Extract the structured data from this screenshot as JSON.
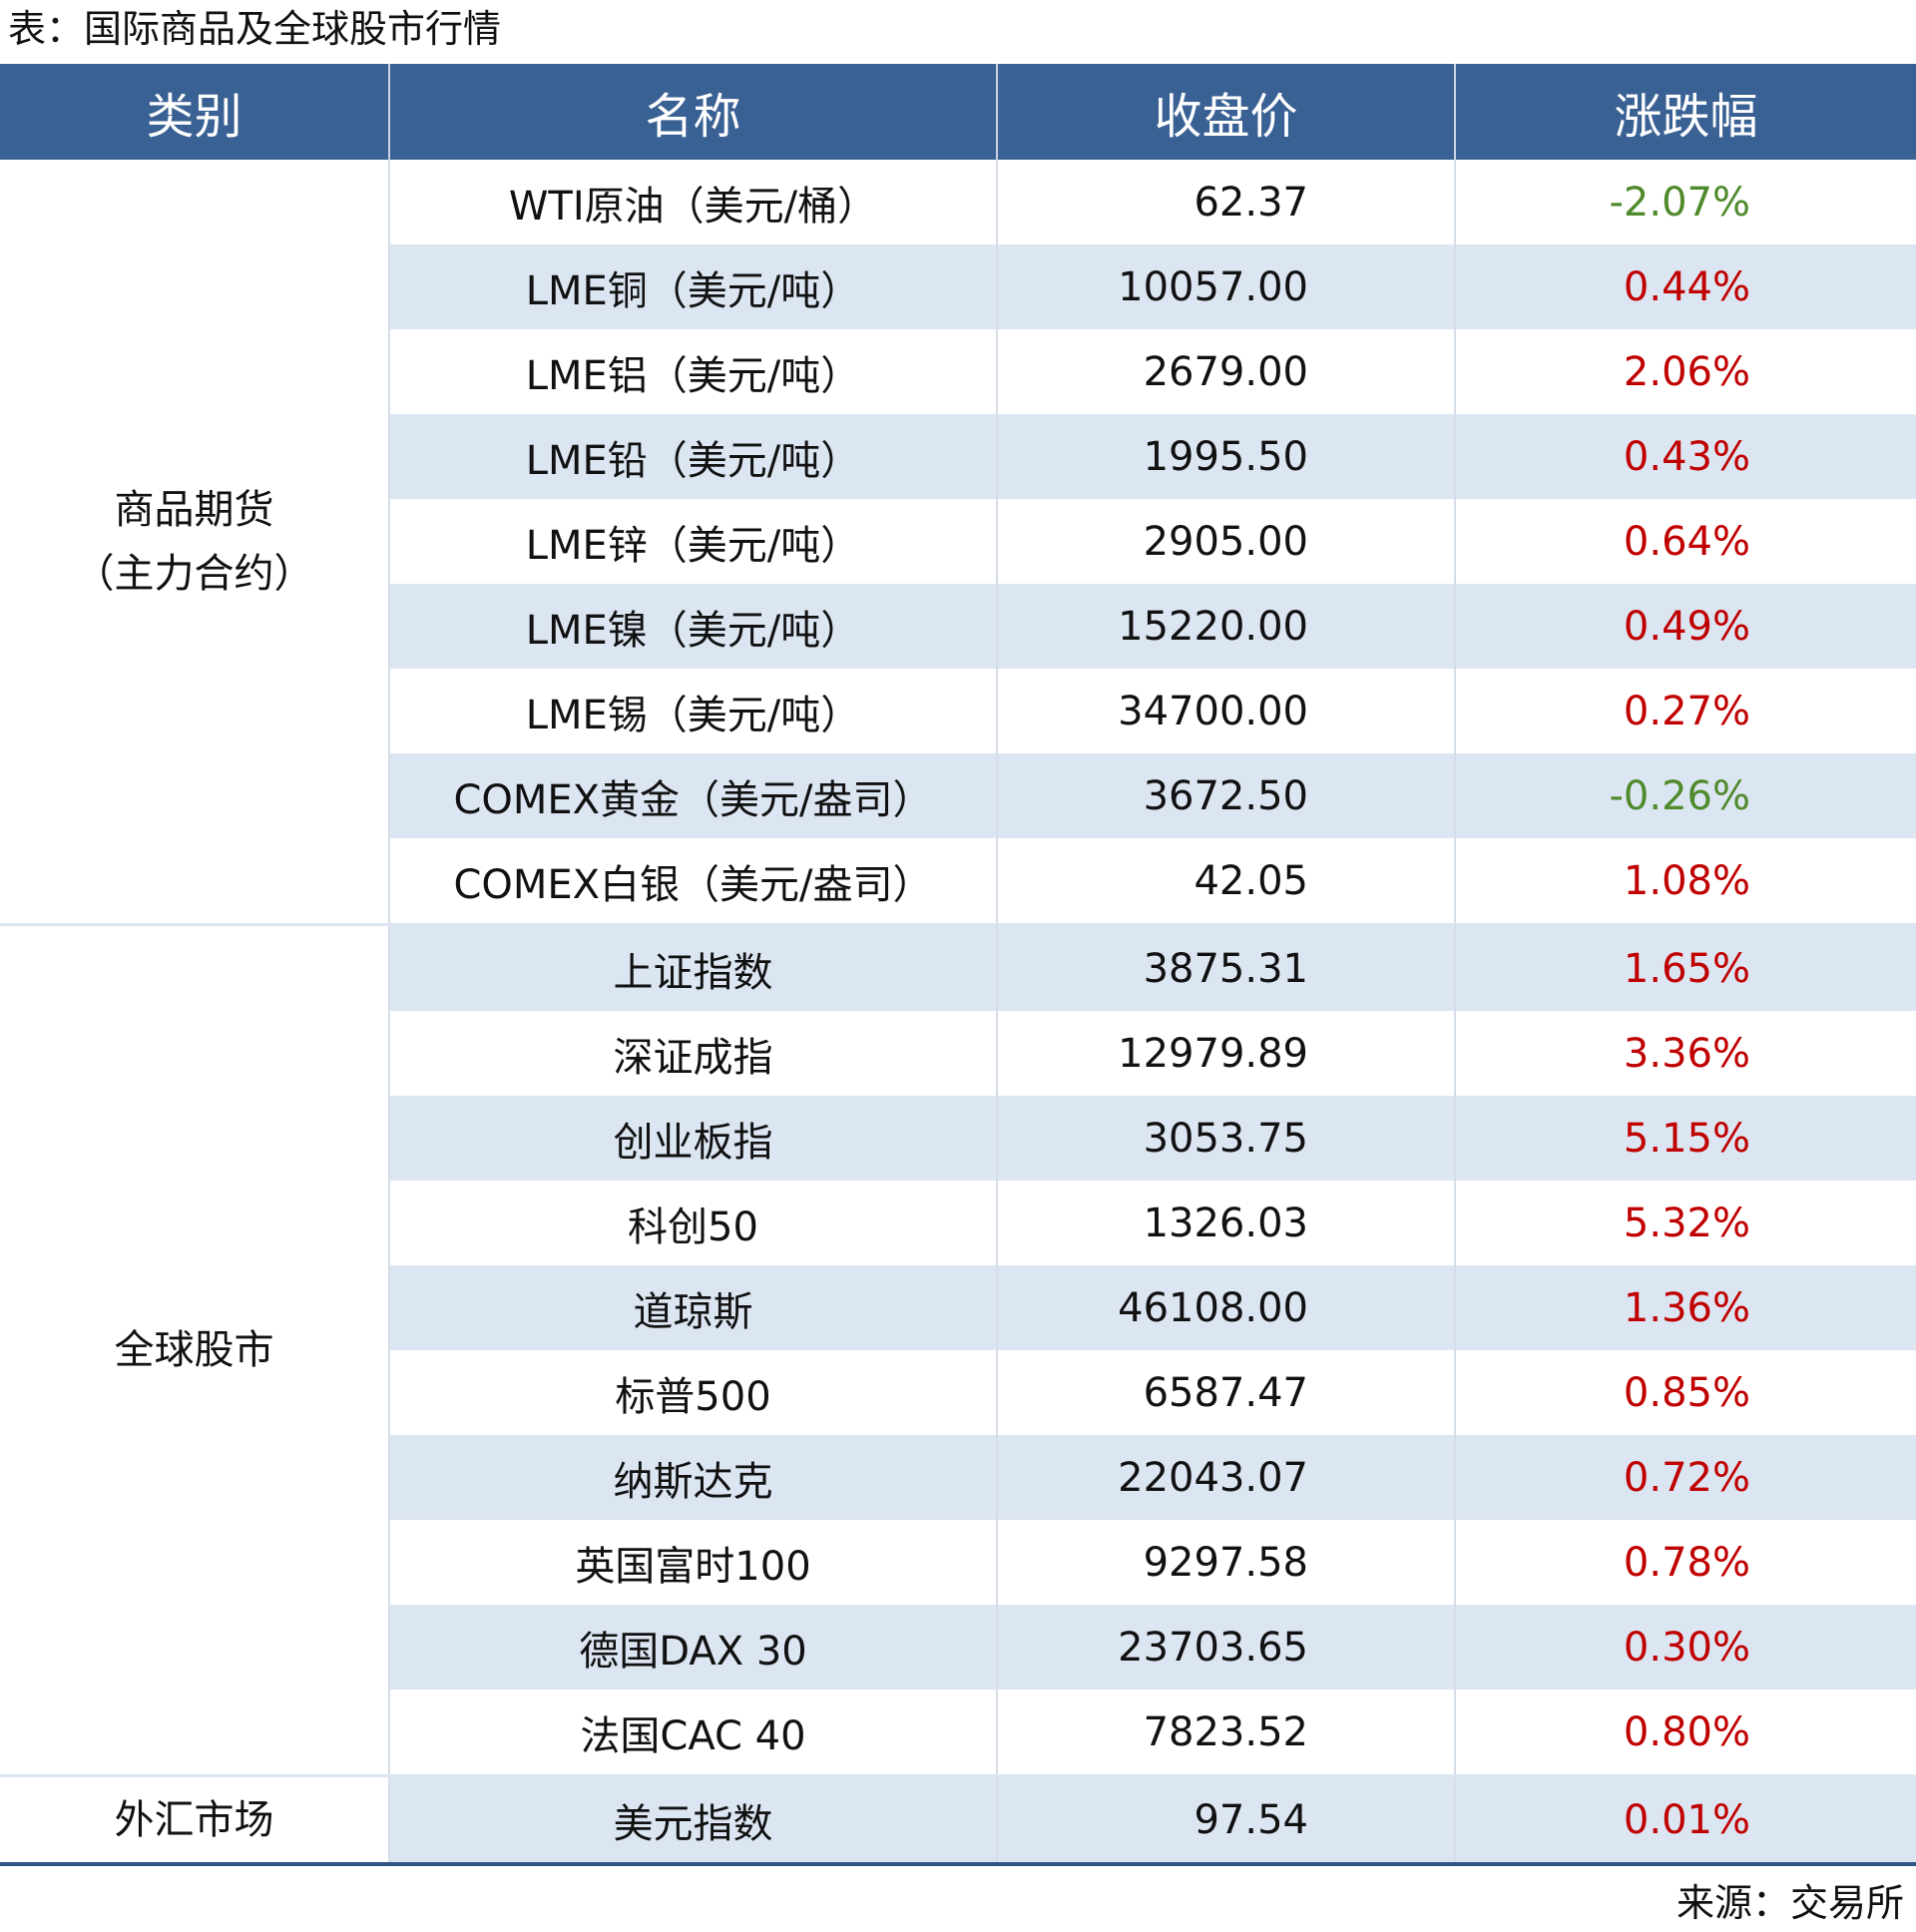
{
  "header": {
    "title": "表：国际商品及全球股市行情"
  },
  "table": {
    "columns": [
      "类别",
      "名称",
      "收盘价",
      "涨跌幅"
    ],
    "groups": [
      {
        "category": [
          "商品期货",
          "（主力合约）"
        ],
        "rows": [
          [
            "WTI原油（美元/桶）",
            "62.37",
            "-2.07%"
          ],
          [
            "LME铜（美元/吨）",
            "10057.00",
            "0.44%"
          ],
          [
            "LME铝（美元/吨）",
            "2679.00",
            "2.06%"
          ],
          [
            "LME铅（美元/吨）",
            "1995.50",
            "0.43%"
          ],
          [
            "LME锌（美元/吨）",
            "2905.00",
            "0.64%"
          ],
          [
            "LME镍（美元/吨）",
            "15220.00",
            "0.49%"
          ],
          [
            "LME锡（美元/吨）",
            "34700.00",
            "0.27%"
          ],
          [
            "COMEX黄金（美元/盎司）",
            "3672.50",
            "-0.26%"
          ],
          [
            "COMEX白银（美元/盎司）",
            "42.05",
            "1.08%"
          ]
        ]
      },
      {
        "category": [
          "全球股市"
        ],
        "rows": [
          [
            "上证指数",
            "3875.31",
            "1.65%"
          ],
          [
            "深证成指",
            "12979.89",
            "3.36%"
          ],
          [
            "创业板指",
            "3053.75",
            "5.15%"
          ],
          [
            "科创50",
            "1326.03",
            "5.32%"
          ],
          [
            "道琼斯",
            "46108.00",
            "1.36%"
          ],
          [
            "标普500",
            "6587.47",
            "0.85%"
          ],
          [
            "纳斯达克",
            "22043.07",
            "0.72%"
          ],
          [
            "英国富时100",
            "9297.58",
            "0.78%"
          ],
          [
            "德国DAX 30",
            "23703.65",
            "0.30%"
          ],
          [
            "法国CAC 40",
            "7823.52",
            "0.80%"
          ]
        ]
      },
      {
        "category": [
          "外汇市场"
        ],
        "rows": [
          [
            "美元指数",
            "97.54",
            "0.01%"
          ]
        ]
      }
    ],
    "colors": {
      "up": "#c00000",
      "down": "#4f8a2b"
    }
  },
  "footer": {
    "source": "来源：交易所"
  }
}
